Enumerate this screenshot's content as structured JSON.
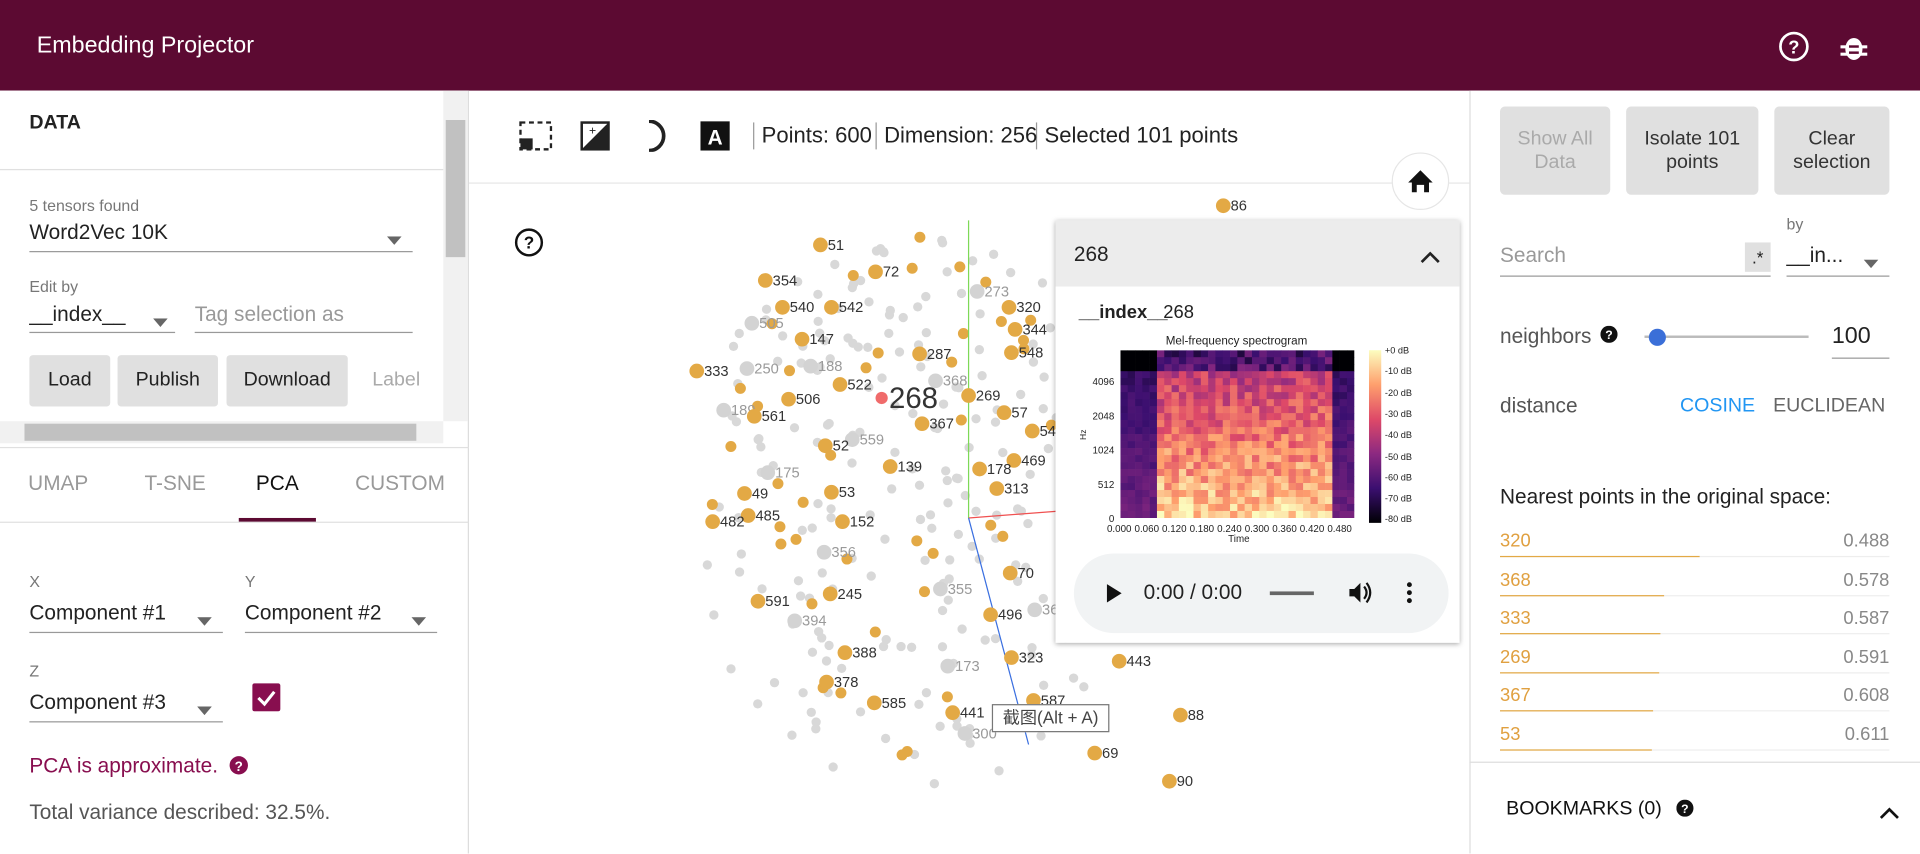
{
  "header": {
    "title": "Embedding Projector"
  },
  "toolbar": {
    "points": "Points: 600",
    "dimension": "Dimension: 256",
    "selected": "Selected 101 points"
  },
  "data_panel": {
    "heading": "DATA",
    "tensors_found": "5 tensors found",
    "tensor": "Word2Vec 10K",
    "edit_by_label": "Edit by",
    "edit_by": "__index__",
    "tag_placeholder": "Tag selection as",
    "buttons": [
      "Load",
      "Publish",
      "Download"
    ],
    "label_button": "Label"
  },
  "projection": {
    "tabs": [
      "UMAP",
      "T-SNE",
      "PCA",
      "CUSTOM"
    ],
    "x_label": "X",
    "x": "Component #1",
    "y_label": "Y",
    "y": "Component #2",
    "z_label": "Z",
    "z": "Component #3",
    "note": "PCA is approximate.",
    "variance": "Total variance described: 32.5%."
  },
  "scatter": {
    "points": [
      {
        "label": "86",
        "color": "#e3a945"
      },
      {
        "label": "51",
        "color": "#e3a945"
      },
      {
        "label": "72",
        "color": "#e3a945"
      },
      {
        "label": "354",
        "color": "#e3a945"
      },
      {
        "label": "273",
        "color": "#d3d3d3"
      },
      {
        "label": "320",
        "color": "#e3a945"
      },
      {
        "label": "540",
        "color": "#e3a945"
      },
      {
        "label": "542",
        "color": "#e3a945"
      },
      {
        "label": "505",
        "color": "#d3d3d3"
      },
      {
        "label": "344",
        "color": "#e3a945"
      },
      {
        "label": "147",
        "color": "#e3a945"
      },
      {
        "label": "548",
        "color": "#e3a945"
      },
      {
        "label": "287",
        "color": "#e3a945"
      },
      {
        "label": "333",
        "color": "#e3a945"
      },
      {
        "label": "250",
        "color": "#d3d3d3"
      },
      {
        "label": "188",
        "color": "#d3d3d3"
      },
      {
        "label": "368",
        "color": "#d3d3d3"
      },
      {
        "label": "522",
        "color": "#e3a945"
      },
      {
        "label": "268",
        "color": "#f06b6b"
      },
      {
        "label": "506",
        "color": "#e3a945"
      },
      {
        "label": "269",
        "color": "#e3a945"
      },
      {
        "label": "189",
        "color": "#d3d3d3"
      },
      {
        "label": "561",
        "color": "#e3a945"
      },
      {
        "label": "57",
        "color": "#e3a945"
      },
      {
        "label": "367",
        "color": "#e3a945"
      },
      {
        "label": "54",
        "color": "#e3a945"
      },
      {
        "label": "559",
        "color": "#d3d3d3"
      },
      {
        "label": "52",
        "color": "#e3a945"
      },
      {
        "label": "469",
        "color": "#e3a945"
      },
      {
        "label": "175",
        "color": "#d3d3d3"
      },
      {
        "label": "139",
        "color": "#e3a945"
      },
      {
        "label": "178",
        "color": "#e3a945"
      },
      {
        "label": "313",
        "color": "#e3a945"
      },
      {
        "label": "53",
        "color": "#e3a945"
      },
      {
        "label": "49",
        "color": "#e3a945"
      },
      {
        "label": "485",
        "color": "#e3a945"
      },
      {
        "label": "482",
        "color": "#e3a945"
      },
      {
        "label": "152",
        "color": "#e3a945"
      },
      {
        "label": "356",
        "color": "#d3d3d3"
      },
      {
        "label": "70",
        "color": "#e3a945"
      },
      {
        "label": "245",
        "color": "#e3a945"
      },
      {
        "label": "355",
        "color": "#d3d3d3"
      },
      {
        "label": "591",
        "color": "#e3a945"
      },
      {
        "label": "496",
        "color": "#e3a945"
      },
      {
        "label": "394",
        "color": "#d3d3d3"
      },
      {
        "label": "36",
        "color": "#d3d3d3"
      },
      {
        "label": "388",
        "color": "#e3a945"
      },
      {
        "label": "323",
        "color": "#e3a945"
      },
      {
        "label": "173",
        "color": "#d3d3d3"
      },
      {
        "label": "443",
        "color": "#e3a945"
      },
      {
        "label": "378",
        "color": "#e3a945"
      },
      {
        "label": "585",
        "color": "#e3a945"
      },
      {
        "label": "441",
        "color": "#e3a945"
      },
      {
        "label": "587",
        "color": "#e3a945"
      },
      {
        "label": "88",
        "color": "#e3a945"
      },
      {
        "label": "300",
        "color": "#d3d3d3"
      },
      {
        "label": "69",
        "color": "#e3a945"
      },
      {
        "label": "90",
        "color": "#e3a945"
      }
    ]
  },
  "tooltip": "截图(Alt + A)",
  "popup": {
    "title": "268",
    "field": "__index__",
    "value": "268",
    "spectrogram": {
      "title": "Mel-frequency spectrogram",
      "ylabel": "Hz",
      "xlabel": "Time",
      "yticks": [
        "4096",
        "2048",
        "1024",
        "512",
        "0"
      ],
      "xticks": [
        "0.000",
        "0.060",
        "0.120",
        "0.180",
        "0.240",
        "0.300",
        "0.360",
        "0.420",
        "0.480"
      ],
      "colorbar": [
        "+0 dB",
        "-10 dB",
        "-20 dB",
        "-30 dB",
        "-40 dB",
        "-50 dB",
        "-60 dB",
        "-70 dB",
        "-80 dB"
      ]
    },
    "audio_time": "0:00 / 0:00"
  },
  "inspector": {
    "buttons": [
      "Show All Data",
      "Isolate 101 points",
      "Clear selection"
    ],
    "search_placeholder": "Search",
    "regex": ".*",
    "by_label": "by",
    "by": "__in...",
    "neighbors_label": "neighbors",
    "neighbors": 100,
    "distance_label": "distance",
    "metrics": [
      "COSINE",
      "EUCLIDEAN"
    ],
    "nearest_title": "Nearest points in the original space:",
    "nearest": [
      {
        "label": "320",
        "distance": 0.488
      },
      {
        "label": "368",
        "distance": 0.578
      },
      {
        "label": "333",
        "distance": 0.587
      },
      {
        "label": "269",
        "distance": 0.591
      },
      {
        "label": "367",
        "distance": 0.608
      },
      {
        "label": "53",
        "distance": 0.611
      }
    ]
  },
  "bookmarks": "BOOKMARKS (0)"
}
